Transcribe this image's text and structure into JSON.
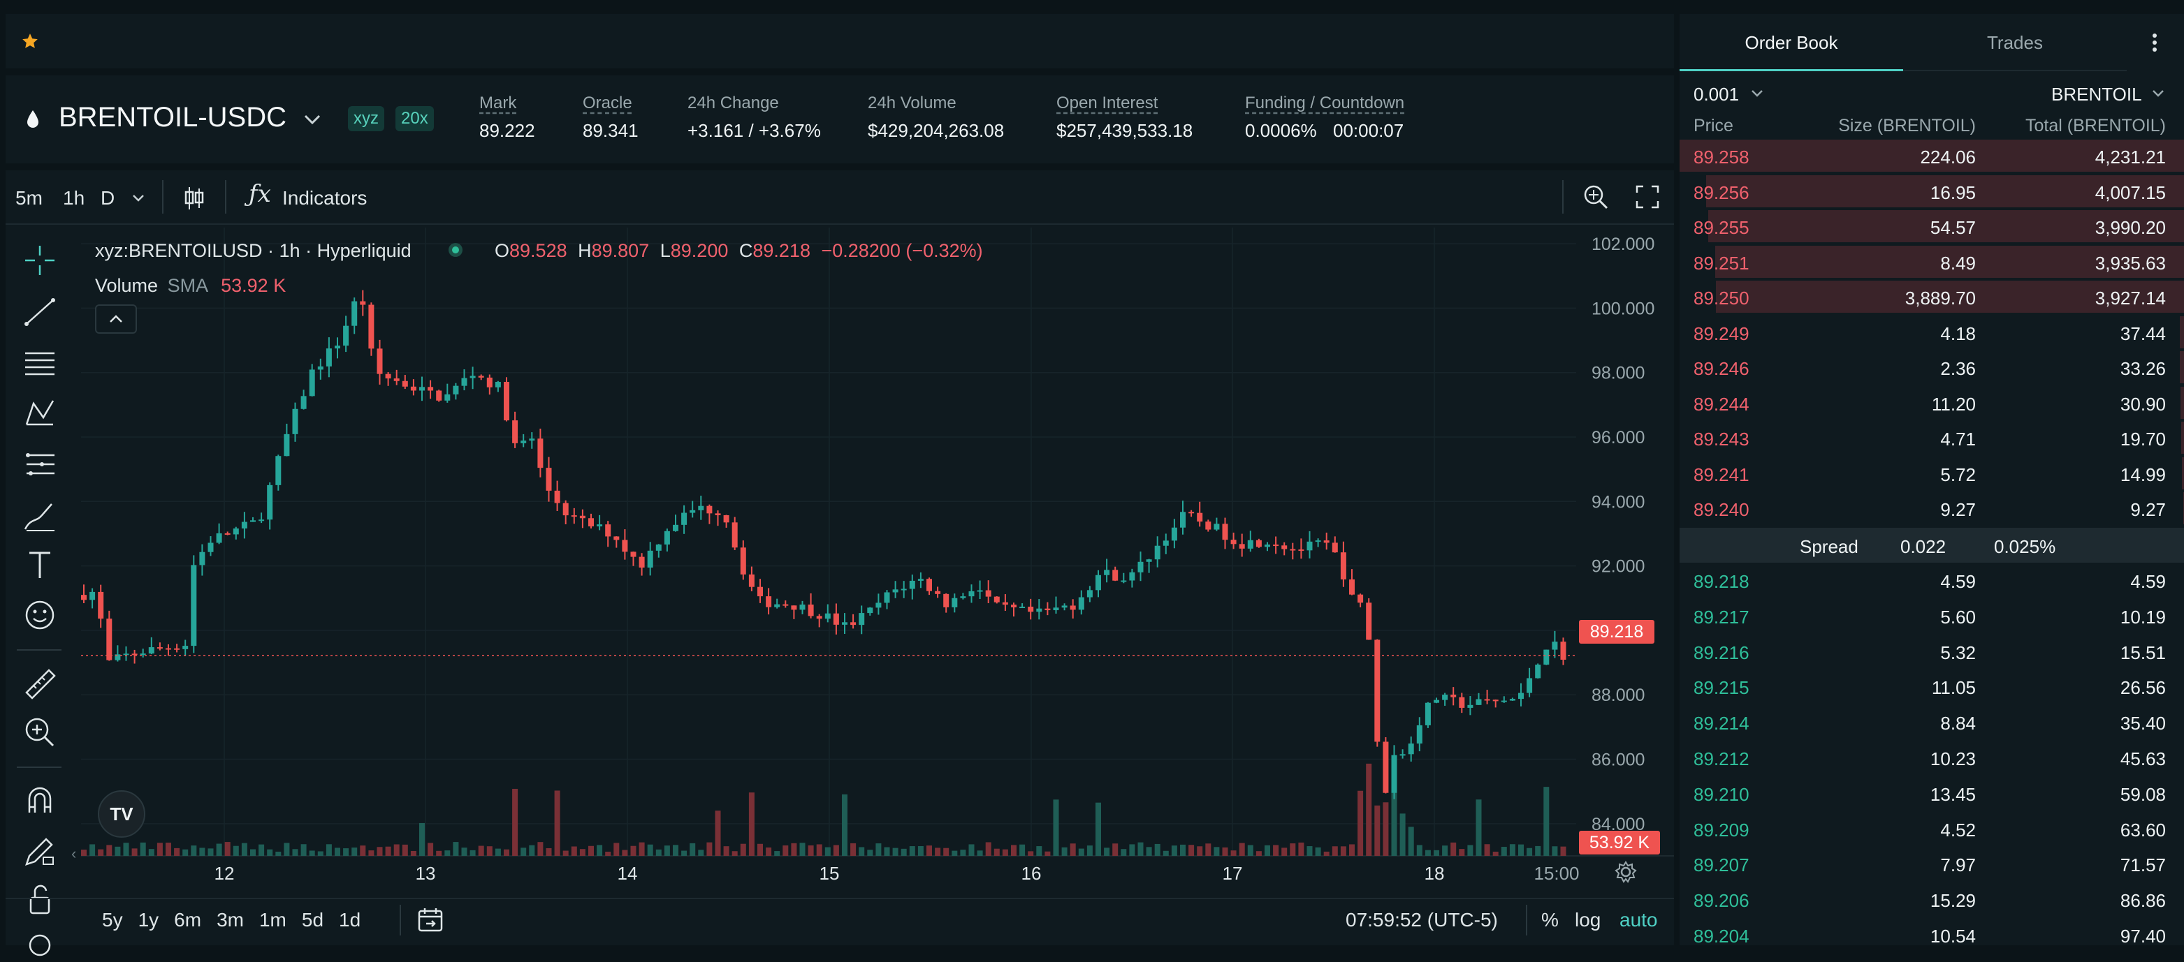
{
  "header": {
    "symbol": "BRENTOIL-USDC",
    "badge_xyz": "xyz",
    "badge_leverage": "20x",
    "stats": [
      {
        "label": "Mark",
        "value": "89.222"
      },
      {
        "label": "Oracle",
        "value": "89.341"
      },
      {
        "label": "24h Change",
        "value": "+3.161 / +3.67%"
      },
      {
        "label": "24h Volume",
        "value": "$429,204,263.08"
      },
      {
        "label": "Open Interest",
        "value": "$257,439,533.18"
      },
      {
        "label": "Funding / Countdown",
        "value": "0.0006%",
        "value2": "00:00:07"
      }
    ]
  },
  "toolbar": {
    "intervals": [
      "5m",
      "1h",
      "D"
    ],
    "active_interval": "1h",
    "indicators_label": "Indicators"
  },
  "legend": {
    "symbol_line": "xyz:BRENTOILUSD · 1h · Hyperliquid",
    "o_label": "O",
    "o_value": "89.528",
    "h_label": "H",
    "h_value": "89.807",
    "l_label": "L",
    "l_value": "89.200",
    "c_label": "C",
    "c_value": "89.218",
    "change": "−0.28200 (−0.32%)",
    "volume_label": "Volume",
    "sma_label": "SMA",
    "volume_value": "53.92 K"
  },
  "chart_data": {
    "type": "candlestick",
    "y_ticks": [
      "102.000",
      "100.000",
      "98.000",
      "96.000",
      "94.000",
      "92.000",
      "90.000",
      "88.000",
      "86.000",
      "84.000"
    ],
    "x_ticks": [
      "12",
      "13",
      "14",
      "15",
      "16",
      "17",
      "18",
      "15:00"
    ],
    "last_price": "89.218",
    "last_volume": "53.92 K",
    "ylim": [
      83,
      102.5
    ],
    "colors": {
      "up": "#26a69a",
      "down": "#ef5350"
    }
  },
  "bottom_bar": {
    "ranges": [
      "5y",
      "1y",
      "6m",
      "3m",
      "1m",
      "5d",
      "1d"
    ],
    "clock": "07:59:52 (UTC-5)",
    "pct": "%",
    "log": "log",
    "auto": "auto"
  },
  "orderbook": {
    "tabs": [
      "Order Book",
      "Trades"
    ],
    "active_tab": "Order Book",
    "tick_size": "0.001",
    "unit": "BRENTOIL",
    "columns": [
      "Price",
      "Size (BRENTOIL)",
      "Total (BRENTOIL)"
    ],
    "asks": [
      {
        "price": "89.258",
        "size": "224.06",
        "total": "4,231.21",
        "depth": 1.0
      },
      {
        "price": "89.256",
        "size": "16.95",
        "total": "4,007.15",
        "depth": 0.947
      },
      {
        "price": "89.255",
        "size": "54.57",
        "total": "3,990.20",
        "depth": 0.943
      },
      {
        "price": "89.251",
        "size": "8.49",
        "total": "3,935.63",
        "depth": 0.93
      },
      {
        "price": "89.250",
        "size": "3,889.70",
        "total": "3,927.14",
        "depth": 0.928
      },
      {
        "price": "89.249",
        "size": "4.18",
        "total": "37.44",
        "depth": 0.009
      },
      {
        "price": "89.246",
        "size": "2.36",
        "total": "33.26",
        "depth": 0.008
      },
      {
        "price": "89.244",
        "size": "11.20",
        "total": "30.90",
        "depth": 0.007
      },
      {
        "price": "89.243",
        "size": "4.71",
        "total": "19.70",
        "depth": 0.005
      },
      {
        "price": "89.241",
        "size": "5.72",
        "total": "14.99",
        "depth": 0.004
      },
      {
        "price": "89.240",
        "size": "9.27",
        "total": "9.27",
        "depth": 0.002
      }
    ],
    "spread_label": "Spread",
    "spread_value": "0.022",
    "spread_pct": "0.025%",
    "bids": [
      {
        "price": "89.218",
        "size": "4.59",
        "total": "4.59"
      },
      {
        "price": "89.217",
        "size": "5.60",
        "total": "10.19"
      },
      {
        "price": "89.216",
        "size": "5.32",
        "total": "15.51"
      },
      {
        "price": "89.215",
        "size": "11.05",
        "total": "26.56"
      },
      {
        "price": "89.214",
        "size": "8.84",
        "total": "35.40"
      },
      {
        "price": "89.212",
        "size": "10.23",
        "total": "45.63"
      },
      {
        "price": "89.210",
        "size": "13.45",
        "total": "59.08"
      },
      {
        "price": "89.209",
        "size": "4.52",
        "total": "63.60"
      },
      {
        "price": "89.207",
        "size": "7.97",
        "total": "71.57"
      },
      {
        "price": "89.206",
        "size": "15.29",
        "total": "86.86"
      },
      {
        "price": "89.204",
        "size": "10.54",
        "total": "97.40"
      }
    ]
  }
}
